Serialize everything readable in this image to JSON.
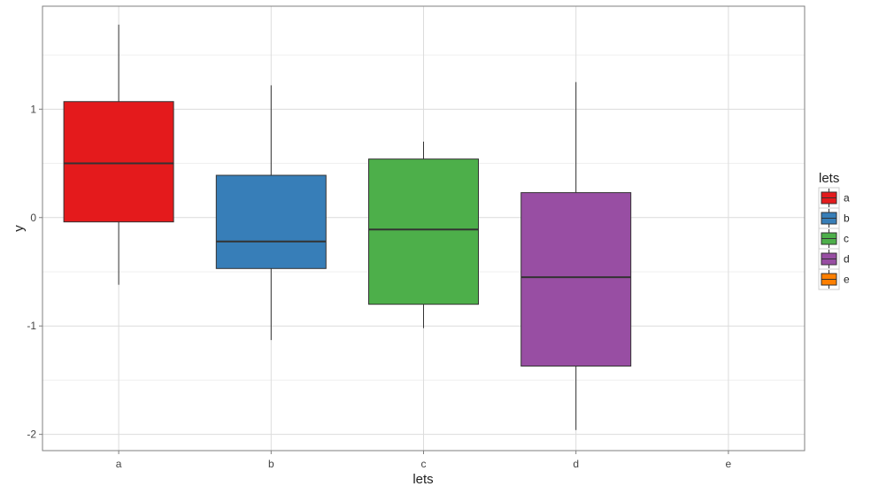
{
  "chart_data": {
    "type": "boxplot",
    "title": "",
    "xlabel": "lets",
    "ylabel": "y",
    "categories": [
      "a",
      "b",
      "c",
      "d",
      "e"
    ],
    "ylim": [
      -2.15,
      1.95
    ],
    "yticks": [
      1,
      0,
      -1,
      -2
    ],
    "ytick_labels": [
      "1",
      "0",
      "-1",
      "-2"
    ],
    "grid": true,
    "legend": {
      "title": "lets",
      "placement": "right",
      "entries": [
        "a",
        "b",
        "c",
        "d",
        "e"
      ]
    },
    "series": [
      {
        "category": "a",
        "color": "#E41A1C",
        "whisker_low": -0.62,
        "q1": -0.04,
        "median": 0.5,
        "q3": 1.07,
        "whisker_high": 1.78
      },
      {
        "category": "b",
        "color": "#377EB8",
        "whisker_low": -1.13,
        "q1": -0.47,
        "median": -0.22,
        "q3": 0.39,
        "whisker_high": 1.22
      },
      {
        "category": "c",
        "color": "#4DAF4A",
        "whisker_low": -1.02,
        "q1": -0.8,
        "median": -0.11,
        "q3": 0.54,
        "whisker_high": 0.7
      },
      {
        "category": "d",
        "color": "#984EA3",
        "whisker_low": -1.96,
        "q1": -1.37,
        "median": -0.55,
        "q3": 0.23,
        "whisker_high": 1.25
      },
      {
        "category": "e",
        "color": "#FF7F00",
        "whisker_low": null,
        "q1": null,
        "median": null,
        "q3": null,
        "whisker_high": null
      }
    ]
  }
}
